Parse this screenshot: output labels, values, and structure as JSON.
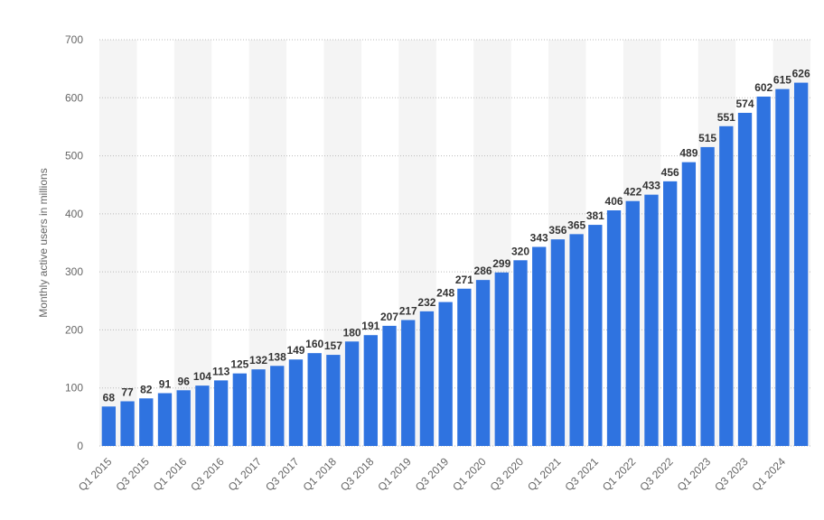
{
  "chart_data": {
    "type": "bar",
    "y_label": "Monthly active users in millions",
    "categories": [
      "Q1 2015",
      null,
      "Q3 2015",
      null,
      "Q1 2016",
      null,
      "Q3 2016",
      null,
      "Q1 2017",
      null,
      "Q3 2017",
      null,
      "Q1 2018",
      null,
      "Q3 2018",
      null,
      "Q1 2019",
      null,
      "Q3 2019",
      null,
      "Q1 2020",
      null,
      "Q3 2020",
      null,
      "Q1 2021",
      null,
      "Q3 2021",
      null,
      "Q1 2022",
      null,
      "Q3 2022",
      null,
      "Q1 2023",
      null,
      "Q3 2023",
      null,
      "Q1 2024",
      null
    ],
    "values": [
      68,
      77,
      82,
      91,
      96,
      104,
      113,
      125,
      132,
      138,
      149,
      160,
      157,
      180,
      191,
      207,
      217,
      232,
      248,
      271,
      286,
      299,
      320,
      343,
      356,
      365,
      381,
      406,
      422,
      433,
      456,
      489,
      515,
      551,
      574,
      602,
      615,
      626
    ],
    "color": "#2f73e0",
    "ylim": [
      0,
      700
    ],
    "yticks": [
      0,
      100,
      200,
      300,
      400,
      500,
      600,
      700
    ],
    "grid": true
  }
}
